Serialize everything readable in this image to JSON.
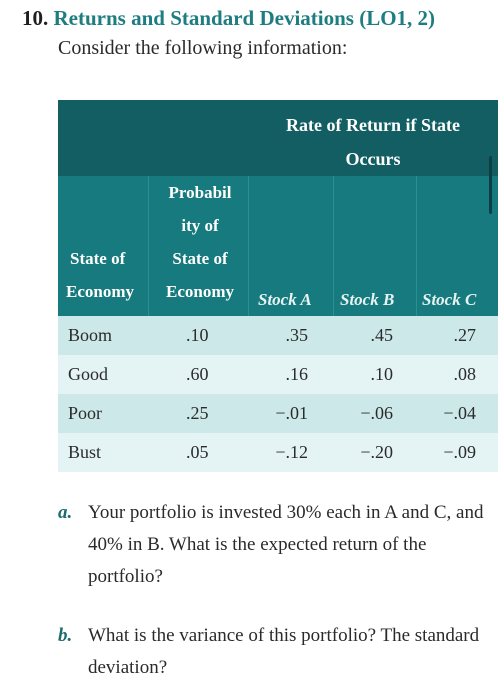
{
  "problem": {
    "number": "10.",
    "title": "Returns and Standard Deviations (LO1, 2)",
    "intro": "Consider the following information:"
  },
  "table": {
    "group_header": [
      "Rate of Return if State",
      "Occurs"
    ],
    "col_state": [
      "State of",
      "Economy"
    ],
    "col_prob": [
      "Probabil",
      "ity of",
      "State of",
      "Economy"
    ],
    "col_a": "Stock A",
    "col_b": "Stock B",
    "col_c": "Stock C",
    "rows": [
      {
        "state": "Boom",
        "prob": ".10",
        "a": ".35",
        "b": ".45",
        "c": ".27"
      },
      {
        "state": "Good",
        "prob": ".60",
        "a": ".16",
        "b": ".10",
        "c": ".08"
      },
      {
        "state": "Poor",
        "prob": ".25",
        "a": "−.01",
        "b": "−.06",
        "c": "−.04"
      },
      {
        "state": "Bust",
        "prob": ".05",
        "a": "−.12",
        "b": "−.20",
        "c": "−.09"
      }
    ]
  },
  "questions": [
    {
      "label": "a.",
      "text": "Your portfolio is invested 30% each in A and C, and 40% in B. What is the expected return of the portfolio?"
    },
    {
      "label": "b.",
      "text": "What is the variance of this portfolio? The standard deviation?"
    }
  ],
  "colors": {
    "title": "#1d7d80",
    "header_dark": "#125e63",
    "header": "#167a7e",
    "row_odd": "#cde8e9",
    "row_even": "#e4f3f3"
  }
}
